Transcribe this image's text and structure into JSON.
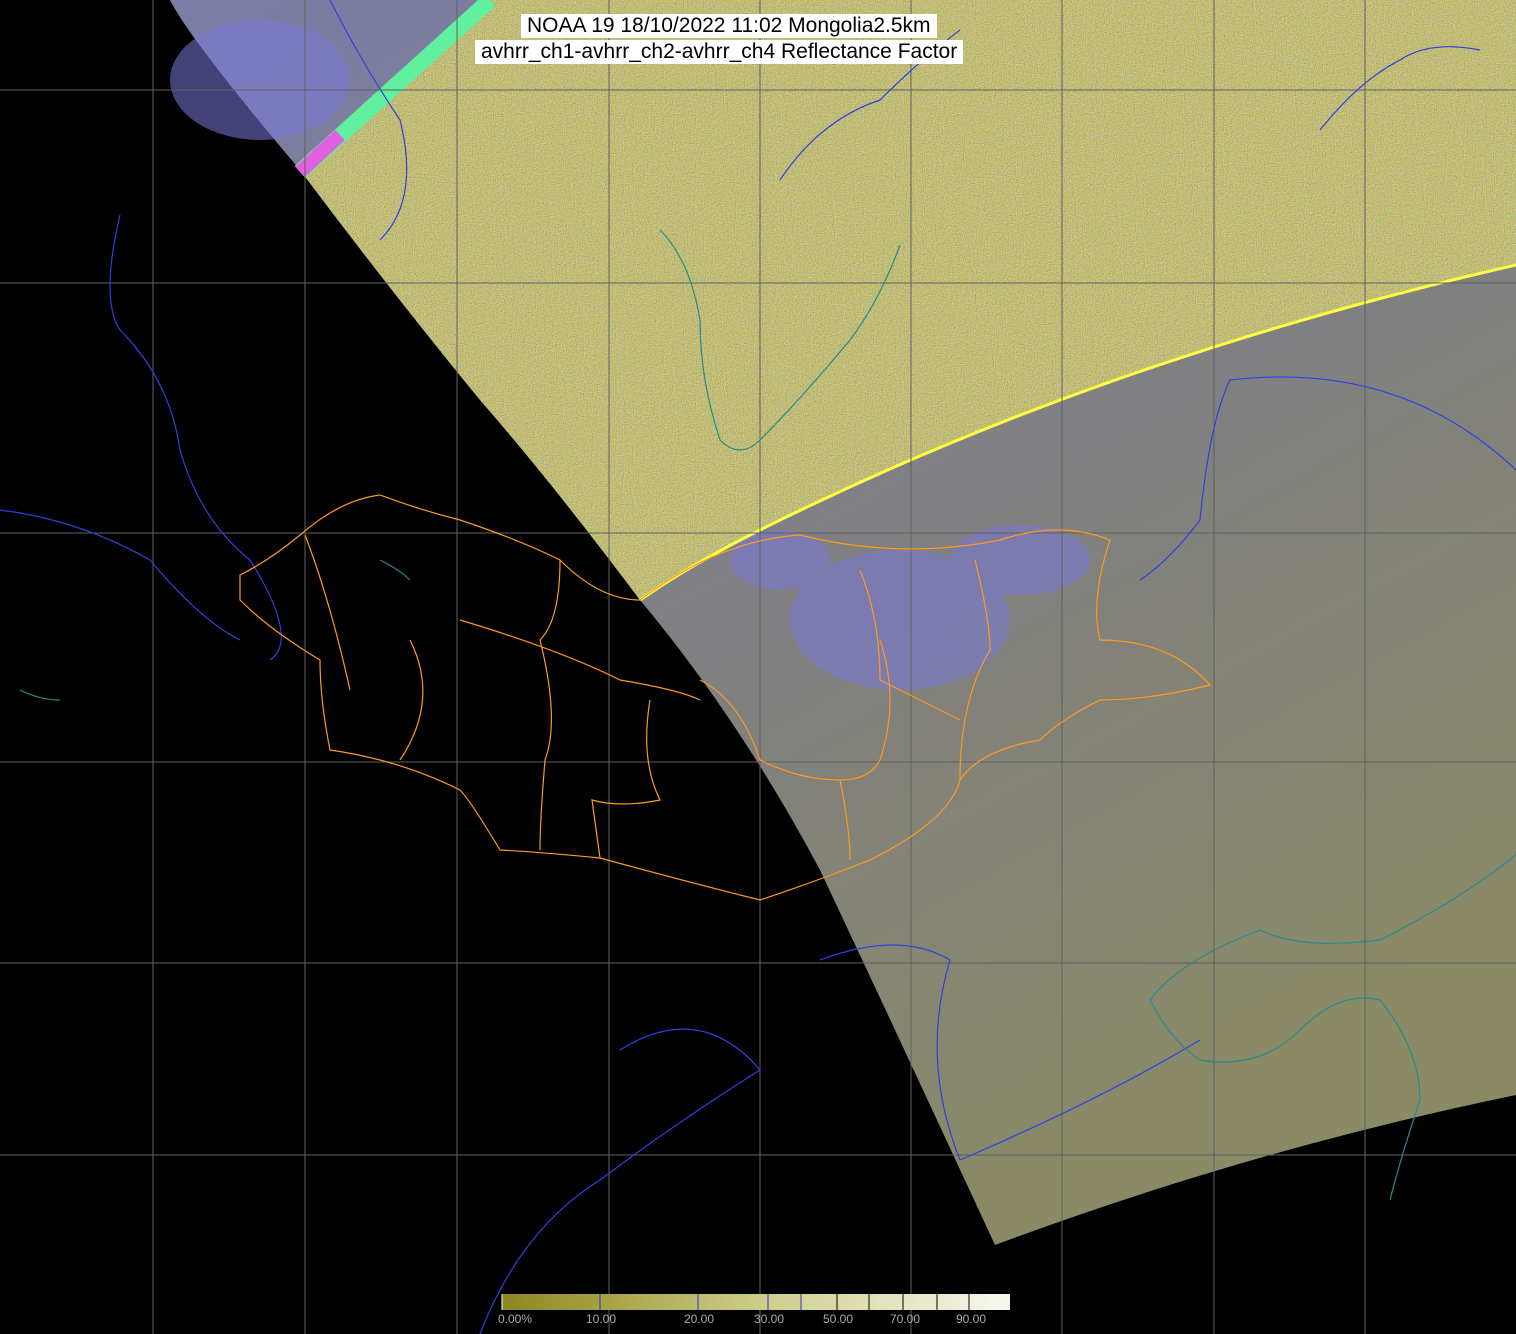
{
  "title": {
    "line1": "NOAA 19 18/10/2022 11:02 Mongolia2.5km",
    "line2": "avhrr_ch1-avhrr_ch2-avhrr_ch4 Reflectance Factor"
  },
  "colorbar": {
    "min": 0,
    "max": 100,
    "ticks": [
      0,
      10,
      20,
      30,
      40,
      50,
      60,
      70,
      80,
      90
    ],
    "labels": [
      "0.00%",
      "10.00",
      "20.00",
      "30.00",
      "50.00",
      "70.00",
      "90.00"
    ],
    "color_low": "#8c8820",
    "color_high": "#f8f8f0"
  },
  "colors": {
    "background": "#000000",
    "swath_gray": "#7e7e84",
    "noise_yellow": "#c8c060",
    "cloud_blue": "#7a78d8",
    "grid": "#606060",
    "admin_boundaries": "#ff9a20",
    "rivers": "#3040e0",
    "coastlines": "#2a8a8a"
  }
}
